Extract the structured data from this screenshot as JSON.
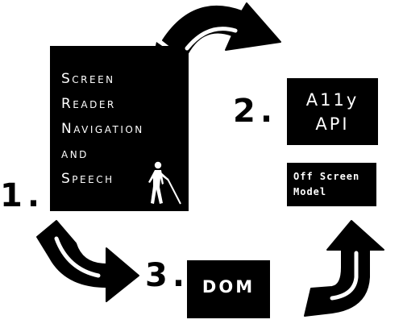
{
  "steps": {
    "one": "1.",
    "two": "2.",
    "three": "3."
  },
  "screen_reader_box": {
    "lines": [
      "Screen",
      "Reader",
      "Navigation",
      "and",
      "Speech"
    ],
    "icon": "blind-person-walking-with-cane-icon"
  },
  "a11y_api_box": {
    "lines": [
      "A11y",
      "API"
    ]
  },
  "off_screen_model_box": {
    "lines": [
      "Off Screen",
      "Model"
    ]
  },
  "dom_box": {
    "label": "DOM"
  },
  "arrows": {
    "top": "curved-arrow-icon",
    "left": "curved-arrow-icon",
    "right": "curved-arrow-icon"
  },
  "colors": {
    "box_fill": "#000000",
    "box_text": "#ffffff",
    "background": "#ffffff"
  }
}
